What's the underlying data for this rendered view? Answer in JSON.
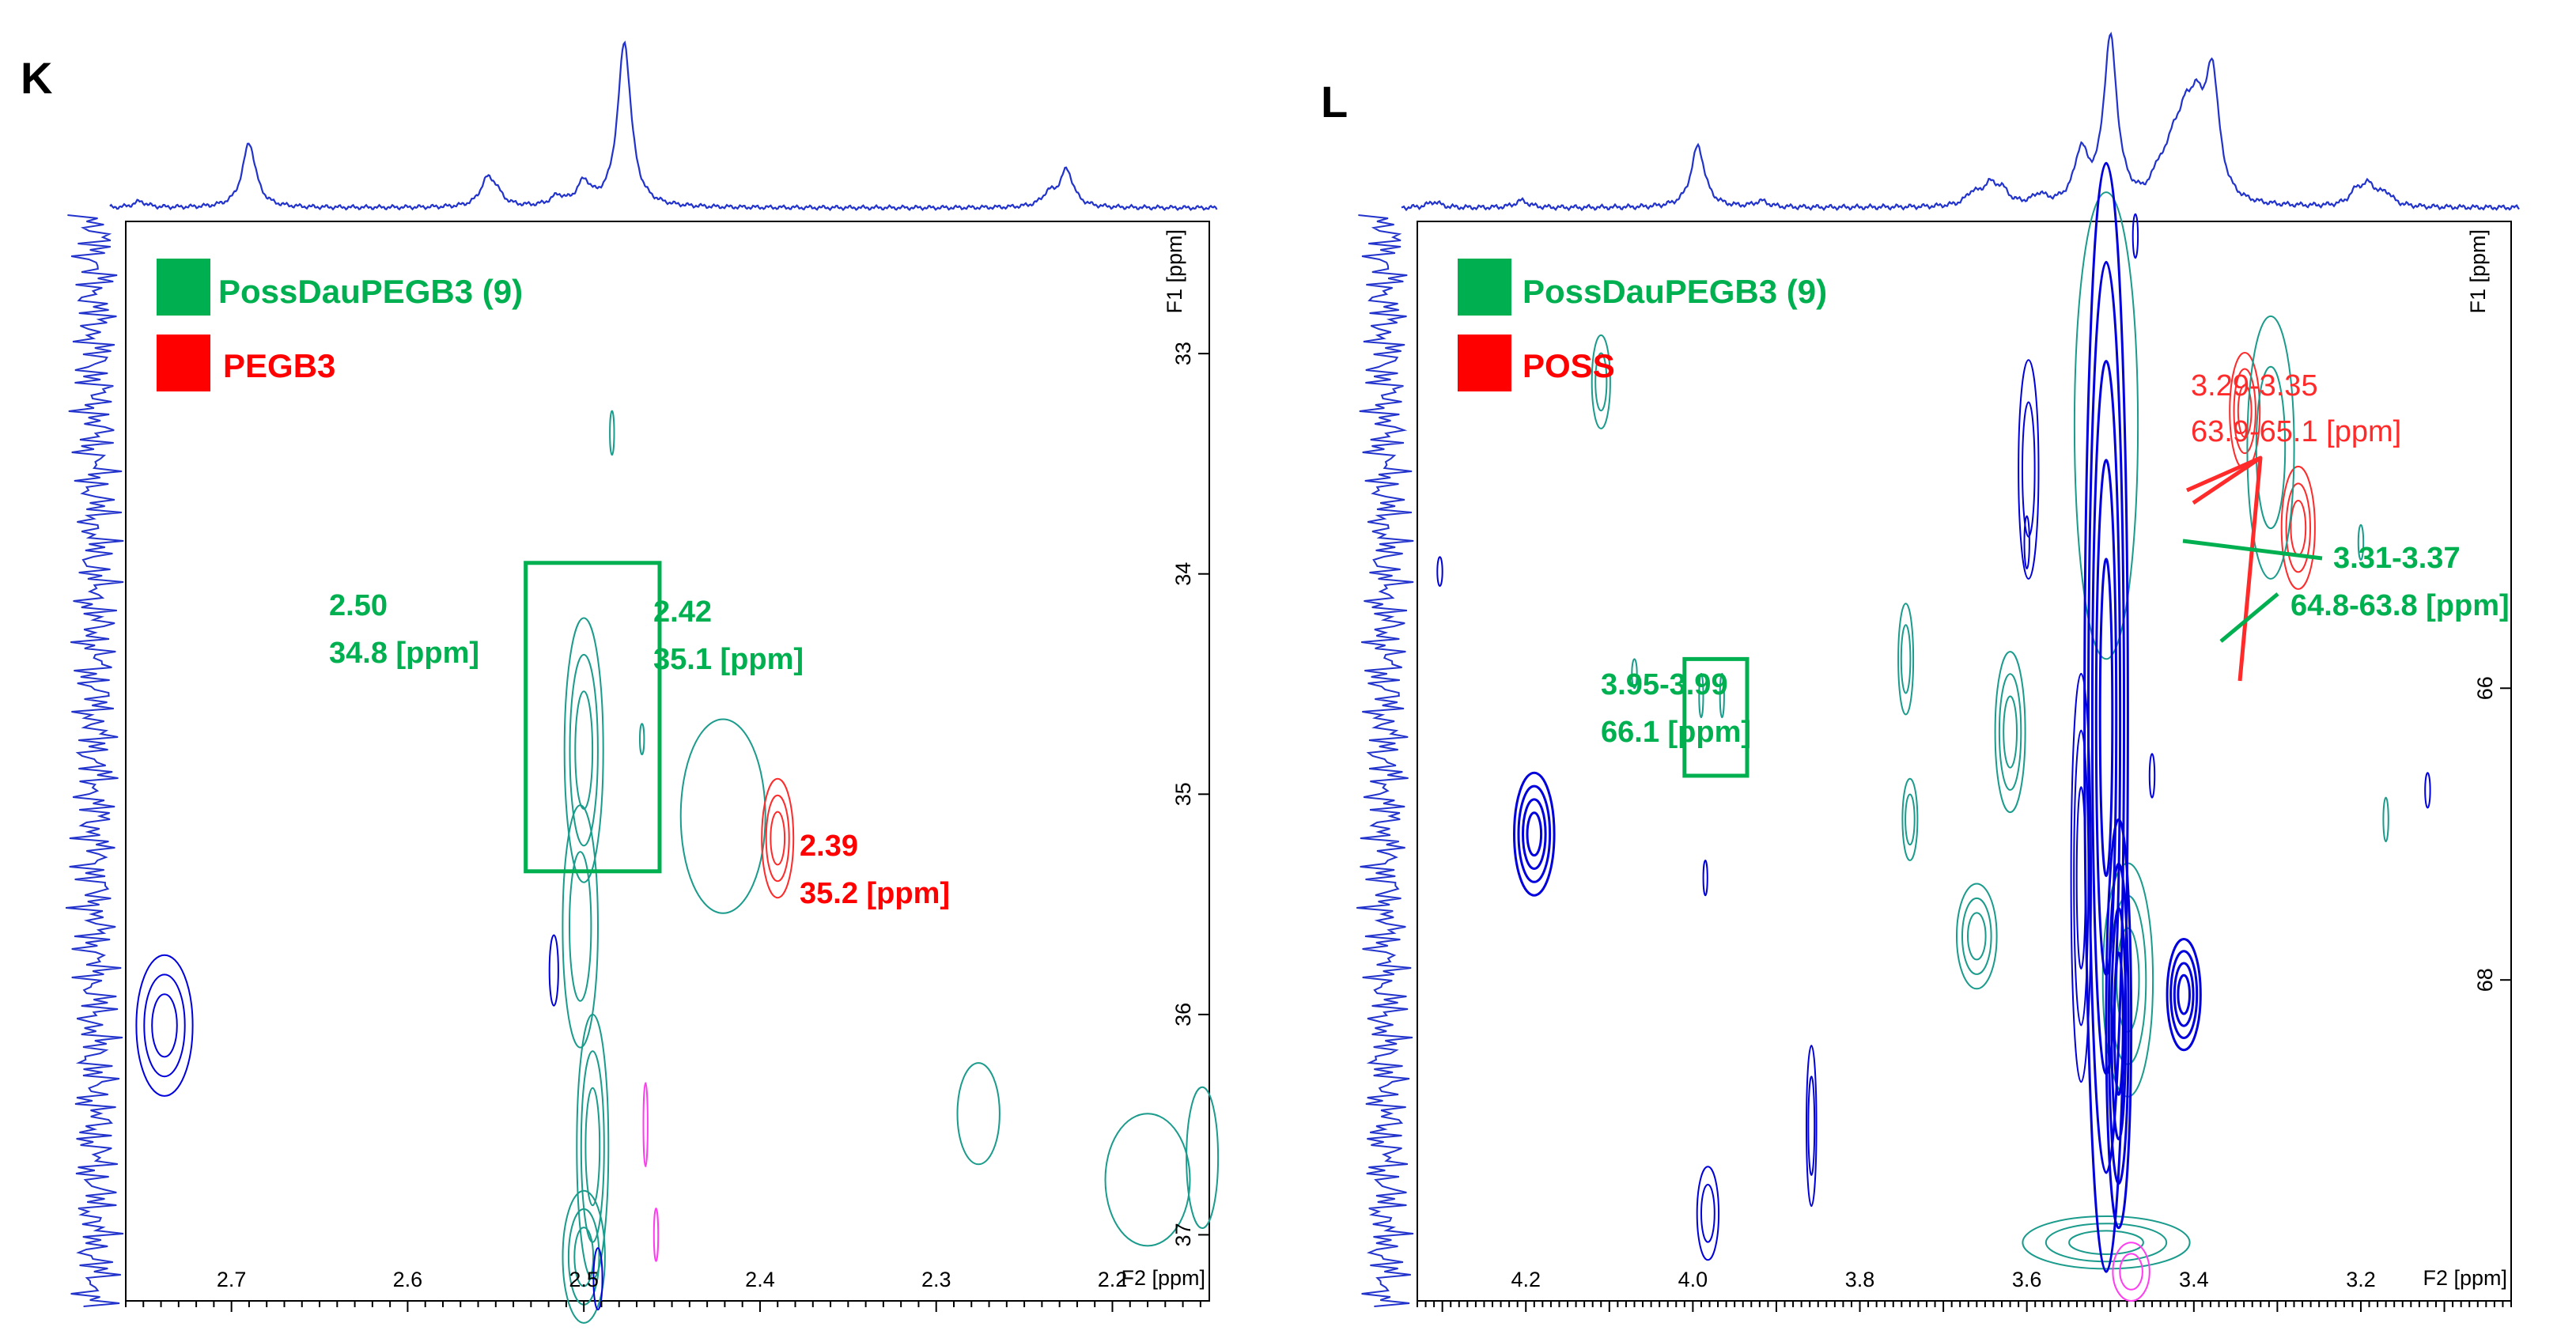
{
  "colors": {
    "green": "#00b050",
    "red": "#ff0000",
    "red_contour": "#ff2a2a",
    "teal": "#1a9b8c",
    "blue": "#0000dd",
    "magenta": "#ff3cf0",
    "projection": "#2233cc"
  },
  "chart_data": [
    {
      "type": "heatmap",
      "subtype": "2D NMR HSQC contour plot",
      "panel": "K",
      "xaxis": {
        "label": "F2 [ppm]",
        "range": [
          2.76,
          2.145
        ],
        "ticks": [
          2.7,
          2.6,
          2.5,
          2.4,
          2.3,
          2.2
        ],
        "tick_labels": [
          "2.7",
          "2.6",
          "2.5",
          "2.4",
          "2.3",
          "2.2"
        ]
      },
      "yaxis": {
        "label": "F1 [ppm]",
        "range": [
          32.4,
          37.3
        ],
        "ticks": [
          33,
          34,
          35,
          36,
          37
        ],
        "tick_labels": [
          "33",
          "34",
          "35",
          "36",
          "37"
        ]
      },
      "legend": [
        {
          "label": "PossDauPEGB3 (9)",
          "color": "#00b050"
        },
        {
          "label": "PEGB3",
          "color": "#ff0000"
        }
      ],
      "annotations": [
        {
          "line1": "2.50",
          "line2": "34.8 [ppm]",
          "color": "green",
          "x_ppm": 2.5,
          "y_ppm": 34.8
        },
        {
          "line1": "2.42",
          "line2": "35.1 [ppm]",
          "color": "green",
          "x_ppm": 2.42,
          "y_ppm": 35.1
        },
        {
          "line1": "2.39",
          "line2": "35.2 [ppm]",
          "color": "red",
          "x_ppm": 2.39,
          "y_ppm": 35.2
        }
      ],
      "box": {
        "x_ppm": [
          2.533,
          2.457
        ],
        "y_ppm": [
          33.95,
          35.35
        ],
        "color": "green"
      },
      "peaks": [
        {
          "x": 2.5,
          "y": 34.8,
          "color": "teal",
          "sx": 0.011,
          "sy": 0.6,
          "levels": 3
        },
        {
          "x": 2.502,
          "y": 35.6,
          "color": "teal",
          "sx": 0.01,
          "sy": 0.55,
          "levels": 2
        },
        {
          "x": 2.495,
          "y": 36.6,
          "color": "teal",
          "sx": 0.009,
          "sy": 0.6,
          "levels": 3
        },
        {
          "x": 2.5,
          "y": 37.1,
          "color": "teal",
          "sx": 0.012,
          "sy": 0.3,
          "levels": 3
        },
        {
          "x": 2.421,
          "y": 35.1,
          "color": "teal",
          "sx": 0.024,
          "sy": 0.44,
          "levels": 1
        },
        {
          "x": 2.39,
          "y": 35.2,
          "color": "red",
          "sx": 0.009,
          "sy": 0.27,
          "levels": 3
        },
        {
          "x": 2.738,
          "y": 36.05,
          "color": "blue",
          "sx": 0.016,
          "sy": 0.32,
          "levels": 3
        },
        {
          "x": 2.276,
          "y": 36.45,
          "color": "teal",
          "sx": 0.012,
          "sy": 0.23,
          "levels": 1
        },
        {
          "x": 2.18,
          "y": 36.75,
          "color": "teal",
          "sx": 0.024,
          "sy": 0.3,
          "levels": 1
        },
        {
          "x": 2.149,
          "y": 36.65,
          "color": "teal",
          "sx": 0.009,
          "sy": 0.32,
          "levels": 1
        },
        {
          "x": 2.484,
          "y": 33.36,
          "color": "teal",
          "sx": 0.0012,
          "sy": 0.1,
          "levels": 1
        },
        {
          "x": 2.467,
          "y": 34.75,
          "color": "teal",
          "sx": 0.0012,
          "sy": 0.07,
          "levels": 1
        },
        {
          "x": 2.517,
          "y": 35.8,
          "color": "blue",
          "sx": 0.0025,
          "sy": 0.16,
          "levels": 1
        },
        {
          "x": 2.492,
          "y": 37.2,
          "color": "blue",
          "sx": 0.0025,
          "sy": 0.14,
          "levels": 1
        },
        {
          "x": 2.465,
          "y": 36.5,
          "color": "magenta",
          "sx": 0.0012,
          "sy": 0.19,
          "levels": 1
        },
        {
          "x": 2.459,
          "y": 37.0,
          "color": "magenta",
          "sx": 0.0012,
          "sy": 0.12,
          "levels": 1
        }
      ],
      "projection_peaks": [
        {
          "x": 2.752,
          "h": 0.06
        },
        {
          "x": 2.69,
          "h": 0.63
        },
        {
          "x": 2.555,
          "h": 0.24
        },
        {
          "x": 2.55,
          "h": 0.12
        },
        {
          "x": 2.515,
          "h": 0.09
        },
        {
          "x": 2.5,
          "h": 0.22
        },
        {
          "x": 2.477,
          "h": 1.6
        },
        {
          "x": 2.226,
          "h": 0.36
        },
        {
          "x": 2.236,
          "h": 0.12
        }
      ]
    },
    {
      "type": "heatmap",
      "subtype": "2D NMR HSQC contour plot",
      "panel": "L",
      "xaxis": {
        "label": "F2 [ppm]",
        "range": [
          4.33,
          3.02
        ],
        "ticks": [
          4.2,
          4.0,
          3.8,
          3.6,
          3.4,
          3.2
        ],
        "tick_labels": [
          "4.2",
          "4.0",
          "3.8",
          "3.6",
          "3.4",
          "3.2"
        ]
      },
      "yaxis": {
        "label": "F1 [ppm]",
        "range": [
          62.8,
          70.2
        ],
        "ticks": [
          66,
          68
        ],
        "tick_labels": [
          "66",
          "68"
        ]
      },
      "legend": [
        {
          "label": "PossDauPEGB3 (9)",
          "color": "#00b050"
        },
        {
          "label": "POSS",
          "color": "#ff0000"
        }
      ],
      "annotations": [
        {
          "line1": "3.29-3.35",
          "line2": "63.9-65.1 [ppm]",
          "color": "red"
        },
        {
          "line1": "3.31-3.37",
          "line2": "64.8-63.8 [ppm]",
          "color": "green"
        },
        {
          "line1": "3.95-3.99",
          "line2": "66.1 [ppm]",
          "color": "green"
        }
      ],
      "box": {
        "x_ppm": [
          4.01,
          3.935
        ],
        "y_ppm": [
          65.8,
          66.6
        ],
        "color": "green"
      },
      "peaks": [
        {
          "x": 3.339,
          "y": 64.1,
          "color": "red",
          "sx": 0.018,
          "sy": 0.4,
          "levels": 3
        },
        {
          "x": 3.275,
          "y": 64.9,
          "color": "red",
          "sx": 0.02,
          "sy": 0.42,
          "levels": 3
        },
        {
          "x": 3.308,
          "y": 64.35,
          "color": "teal",
          "sx": 0.028,
          "sy": 0.9,
          "levels": 2
        },
        {
          "x": 3.479,
          "y": 68.0,
          "color": "teal",
          "sx": 0.03,
          "sy": 0.8,
          "levels": 3
        },
        {
          "x": 3.62,
          "y": 66.3,
          "color": "teal",
          "sx": 0.018,
          "sy": 0.55,
          "levels": 3
        },
        {
          "x": 3.66,
          "y": 67.7,
          "color": "teal",
          "sx": 0.024,
          "sy": 0.36,
          "levels": 3
        },
        {
          "x": 3.505,
          "y": 69.8,
          "color": "teal",
          "sx": 0.1,
          "sy": 0.18,
          "levels": 3
        },
        {
          "x": 3.505,
          "y": 64.2,
          "color": "teal",
          "sx": 0.038,
          "sy": 1.6,
          "levels": 1
        },
        {
          "x": 3.745,
          "y": 65.8,
          "color": "teal",
          "sx": 0.009,
          "sy": 0.38,
          "levels": 2
        },
        {
          "x": 3.74,
          "y": 66.9,
          "color": "teal",
          "sx": 0.009,
          "sy": 0.28,
          "levels": 2
        },
        {
          "x": 4.11,
          "y": 63.9,
          "color": "teal",
          "sx": 0.011,
          "sy": 0.32,
          "levels": 2
        },
        {
          "x": 4.19,
          "y": 67.0,
          "color": "blue",
          "sx": 0.024,
          "sy": 0.42,
          "levels": 4
        },
        {
          "x": 3.412,
          "y": 68.1,
          "color": "blue",
          "sx": 0.02,
          "sy": 0.38,
          "levels": 4
        },
        {
          "x": 3.598,
          "y": 64.5,
          "color": "blue",
          "sx": 0.012,
          "sy": 0.75,
          "levels": 2
        },
        {
          "x": 3.505,
          "y": 66.2,
          "color": "blue",
          "sx": 0.026,
          "sy": 3.8,
          "levels": 5
        },
        {
          "x": 3.49,
          "y": 68.3,
          "color": "blue",
          "sx": 0.015,
          "sy": 1.4,
          "levels": 4
        },
        {
          "x": 3.535,
          "y": 67.3,
          "color": "blue",
          "sx": 0.012,
          "sy": 1.4,
          "levels": 3
        },
        {
          "x": 3.982,
          "y": 69.6,
          "color": "blue",
          "sx": 0.013,
          "sy": 0.32,
          "levels": 2
        },
        {
          "x": 3.858,
          "y": 69.0,
          "color": "blue",
          "sx": 0.006,
          "sy": 0.55,
          "levels": 2
        },
        {
          "x": 3.99,
          "y": 66.05,
          "color": "teal",
          "sx": 0.0025,
          "sy": 0.15,
          "levels": 1
        },
        {
          "x": 3.965,
          "y": 66.05,
          "color": "teal",
          "sx": 0.0025,
          "sy": 0.15,
          "levels": 1
        },
        {
          "x": 4.07,
          "y": 65.9,
          "color": "teal",
          "sx": 0.003,
          "sy": 0.1,
          "levels": 1
        },
        {
          "x": 4.303,
          "y": 65.2,
          "color": "blue",
          "sx": 0.003,
          "sy": 0.1,
          "levels": 1
        },
        {
          "x": 3.985,
          "y": 67.3,
          "color": "blue",
          "sx": 0.0025,
          "sy": 0.12,
          "levels": 1
        },
        {
          "x": 3.6,
          "y": 65.0,
          "color": "blue",
          "sx": 0.003,
          "sy": 0.18,
          "levels": 1
        },
        {
          "x": 3.47,
          "y": 62.9,
          "color": "blue",
          "sx": 0.003,
          "sy": 0.15,
          "levels": 1
        },
        {
          "x": 3.45,
          "y": 66.6,
          "color": "blue",
          "sx": 0.003,
          "sy": 0.15,
          "levels": 1
        },
        {
          "x": 3.17,
          "y": 66.9,
          "color": "teal",
          "sx": 0.003,
          "sy": 0.15,
          "levels": 1
        },
        {
          "x": 3.12,
          "y": 66.7,
          "color": "blue",
          "sx": 0.003,
          "sy": 0.12,
          "levels": 1
        },
        {
          "x": 3.2,
          "y": 65.0,
          "color": "teal",
          "sx": 0.003,
          "sy": 0.12,
          "levels": 1
        },
        {
          "x": 3.475,
          "y": 70.0,
          "color": "magenta",
          "sx": 0.022,
          "sy": 0.2,
          "levels": 2
        }
      ],
      "projection_peaks": [
        {
          "x": 4.31,
          "h": 0.05
        },
        {
          "x": 4.205,
          "h": 0.06
        },
        {
          "x": 3.994,
          "h": 0.52
        },
        {
          "x": 3.918,
          "h": 0.05
        },
        {
          "x": 3.665,
          "h": 0.1
        },
        {
          "x": 3.645,
          "h": 0.16
        },
        {
          "x": 3.63,
          "h": 0.12
        },
        {
          "x": 3.585,
          "h": 0.08
        },
        {
          "x": 3.535,
          "h": 0.42
        },
        {
          "x": 3.5,
          "h": 1.4
        },
        {
          "x": 3.442,
          "h": 0.2
        },
        {
          "x": 3.425,
          "h": 0.38
        },
        {
          "x": 3.41,
          "h": 0.55
        },
        {
          "x": 3.396,
          "h": 0.6
        },
        {
          "x": 3.378,
          "h": 1.05
        },
        {
          "x": 3.205,
          "h": 0.12
        },
        {
          "x": 3.19,
          "h": 0.16
        },
        {
          "x": 3.17,
          "h": 0.1
        }
      ]
    }
  ]
}
